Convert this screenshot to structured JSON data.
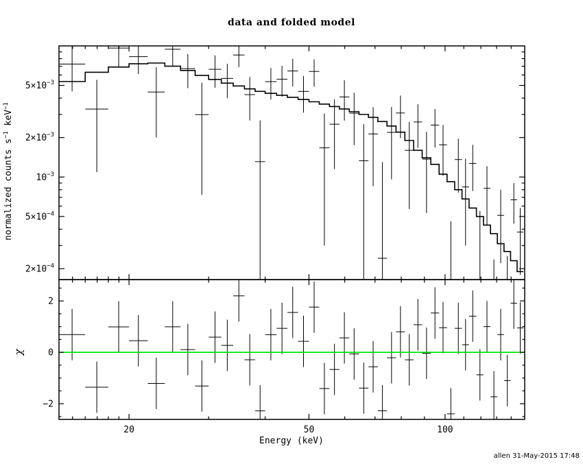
{
  "title": "data and folded model",
  "xlabel": "Energy (keV)",
  "ylabel_parts": [
    {
      "t": "normalized counts s"
    },
    {
      "t": "−1",
      "sup": true
    },
    {
      "t": " keV"
    },
    {
      "t": "−1",
      "sup": true
    }
  ],
  "chi_label": "χ",
  "timestamp": "allen 31-May-2015 17:48",
  "colors": {
    "foreground": "#000000",
    "model_line": "#000000",
    "data_cross": "#000000",
    "zero_line": "#00e500",
    "background": "#ffffff"
  },
  "chart_data": {
    "type": "line",
    "subtype": "xspec-spectrum-with-residuals",
    "title": "data and folded model",
    "xlabel": "Energy (keV)",
    "ylabel": "normalized counts s−1 keV−1",
    "residual_label": "χ",
    "legend": "none",
    "grid": false,
    "x_axis": {
      "scale": "log",
      "min": 14,
      "max": 150,
      "major_ticks": [
        {
          "v": 20,
          "label": "20"
        },
        {
          "v": 50,
          "label": "50"
        },
        {
          "v": 100,
          "label": "100"
        }
      ],
      "minor_ticks": [
        15,
        16,
        17,
        18,
        19,
        30,
        40,
        60,
        70,
        80,
        90,
        110,
        120,
        130,
        140
      ]
    },
    "y_axis_spectrum": {
      "scale": "log",
      "min": 0.000165,
      "max": 0.01,
      "major_ticks": [
        {
          "v": 0.005,
          "mant": "5×10",
          "exp": "−3"
        },
        {
          "v": 0.002,
          "mant": "2×10",
          "exp": "−3"
        },
        {
          "v": 0.001,
          "mant": "10",
          "exp": "−3"
        },
        {
          "v": 0.0005,
          "mant": "5×10",
          "exp": "−4"
        },
        {
          "v": 0.0002,
          "mant": "2×10",
          "exp": "−4"
        }
      ],
      "minor_ticks": [
        0.009,
        0.008,
        0.007,
        0.006,
        0.004,
        0.003,
        0.0009,
        0.0008,
        0.0007,
        0.0006,
        0.0004,
        0.0003
      ]
    },
    "y_axis_residuals": {
      "scale": "linear",
      "min": -2.61,
      "max": 2.83,
      "major_ticks": [
        {
          "v": 2,
          "label": "2"
        },
        {
          "v": 0,
          "label": "0"
        },
        {
          "v": -2,
          "label": "−2"
        }
      ],
      "minor_ticks": [
        2.5,
        1.5,
        1,
        0.5,
        -0.5,
        -1,
        -1.5,
        -2.5
      ],
      "zero_line": 0
    },
    "series": [
      {
        "name": "data",
        "style": "crosses-with-errors"
      },
      {
        "name": "folded model",
        "style": "stepped-histogram-line"
      },
      {
        "name": "chi residuals",
        "style": "crosses-unit-errors"
      }
    ],
    "columns": [
      "E_lo_keV",
      "E_hi_keV",
      "model",
      "data",
      "error"
    ],
    "bins": [
      [
        14,
        16,
        0.00535,
        0.00727,
        0.00278
      ],
      [
        16,
        18,
        0.0063,
        0.0033,
        0.00221
      ],
      [
        18,
        20,
        0.0069,
        0.00963,
        0.00276
      ],
      [
        20,
        22,
        0.0073,
        0.00829,
        0.00219
      ],
      [
        22,
        24,
        0.0074,
        0.00445,
        0.00244
      ],
      [
        24,
        26,
        0.007,
        0.00943,
        0.00245
      ],
      [
        26,
        28,
        0.0065,
        0.00671,
        0.00195
      ],
      [
        28,
        30,
        0.00595,
        0.00299,
        0.00226
      ],
      [
        30,
        32,
        0.00555,
        0.00663,
        0.00183
      ],
      [
        32,
        34,
        0.0052,
        0.00565,
        0.00166
      ],
      [
        34,
        36,
        0.00495,
        0.00853,
        0.00163
      ],
      [
        36,
        38,
        0.0047,
        0.00425,
        0.00155
      ],
      [
        38,
        40,
        0.0045,
        0.00131,
        0.0014
      ],
      [
        40,
        42.4,
        0.00435,
        0.00534,
        0.00144
      ],
      [
        42.4,
        44.8,
        0.0042,
        0.00557,
        0.00147
      ],
      [
        44.8,
        47.3,
        0.00405,
        0.00644,
        0.00154
      ],
      [
        47.3,
        50,
        0.0039,
        0.0045,
        0.0014
      ],
      [
        50,
        52.7,
        0.00375,
        0.00639,
        0.0015
      ],
      [
        52.7,
        55.5,
        0.0036,
        0.00167,
        0.00137
      ],
      [
        55.5,
        58.4,
        0.00345,
        0.00253,
        0.00138
      ],
      [
        58.4,
        61.4,
        0.0033,
        0.00408,
        0.00139
      ],
      [
        61.4,
        64.5,
        0.00315,
        0.00307,
        0.00132
      ],
      [
        64.5,
        67.7,
        0.003,
        0.00133,
        0.0012
      ],
      [
        67.7,
        71,
        0.00285,
        0.00213,
        0.00128
      ],
      [
        71,
        74.4,
        0.00265,
        0.00024,
        0.00106
      ],
      [
        74.4,
        77.9,
        0.00245,
        0.00219,
        0.00123
      ],
      [
        77.9,
        81.5,
        0.0022,
        0.00308,
        0.0011
      ],
      [
        81.5,
        85.2,
        0.0019,
        0.0016,
        0.00103
      ],
      [
        85.2,
        89,
        0.0016,
        0.00263,
        0.00096
      ],
      [
        89,
        93,
        0.0014,
        0.00137,
        0.00084
      ],
      [
        93,
        97,
        0.00125,
        0.00249,
        0.00081
      ],
      [
        97,
        101,
        0.00105,
        0.00176,
        0.00074
      ],
      [
        101,
        105,
        0.00092,
        0.00013,
        0.00033
      ],
      [
        105,
        109,
        0.0008,
        0.00136,
        0.0006
      ],
      [
        109,
        113,
        0.00068,
        0.00084,
        0.00054
      ],
      [
        113,
        117.3,
        0.00058,
        0.00127,
        0.00049
      ],
      [
        117.3,
        121.6,
        0.0005,
        0.00015,
        0.0004
      ],
      [
        121.6,
        126,
        0.00043,
        0.00082,
        0.00039
      ],
      [
        126,
        130.5,
        0.00037,
        5e-05,
        0.000185
      ],
      [
        130.5,
        135,
        0.00031,
        0.00051,
        0.00029
      ],
      [
        135,
        139.6,
        0.00027,
        5e-05,
        0.0002
      ],
      [
        139.6,
        144.3,
        0.00023,
        0.00067,
        0.00023
      ],
      [
        144.3,
        149,
        0.00019,
        0.00038,
        0.0002
      ]
    ]
  }
}
